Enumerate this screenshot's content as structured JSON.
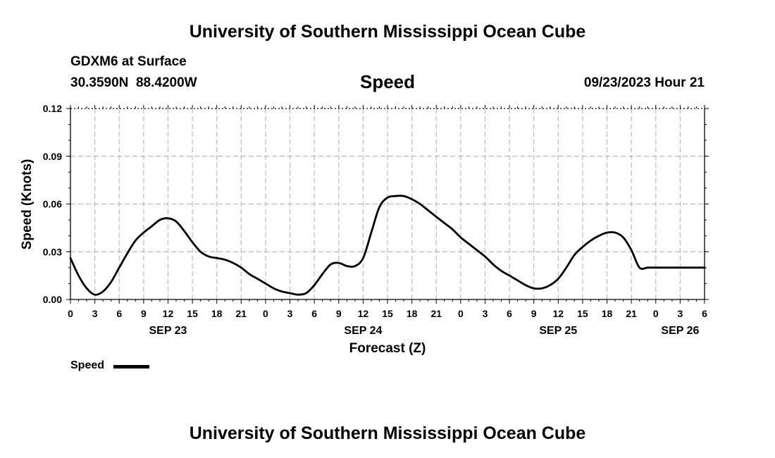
{
  "header": {
    "title": "University of Southern Mississippi Ocean Cube",
    "station": "GDXM6 at Surface",
    "coords": "30.3590N  88.4200W",
    "plot_title": "Speed",
    "datetime": "09/23/2023 Hour 21",
    "footer_title": "University of Southern Mississippi Ocean Cube"
  },
  "legend": {
    "label": "Speed"
  },
  "colors": {
    "line": "#000000",
    "grid": "#bbbbbb",
    "background": "#ffffff"
  },
  "chart_data": {
    "type": "line",
    "title": "Speed",
    "xlabel": "Forecast (Z)",
    "ylabel": "Speed (Knots)",
    "xlim": [
      0,
      78
    ],
    "ylim": [
      0,
      0.12
    ],
    "yticks": [
      "0.00",
      "0.03",
      "0.06",
      "0.09",
      "0.12"
    ],
    "ytick_values": [
      0,
      0.03,
      0.06,
      0.09,
      0.12
    ],
    "xtick_labels": [
      "0",
      "3",
      "6",
      "9",
      "12",
      "15",
      "18",
      "21",
      "0",
      "3",
      "6",
      "9",
      "12",
      "15",
      "18",
      "21",
      "0",
      "3",
      "6",
      "9",
      "12",
      "15",
      "18",
      "21",
      "0",
      "3",
      "6"
    ],
    "date_labels": [
      {
        "label": "SEP 23",
        "x": 12
      },
      {
        "label": "SEP 24",
        "x": 36
      },
      {
        "label": "SEP 25",
        "x": 60
      },
      {
        "label": "SEP 26",
        "x": 75
      }
    ],
    "grid": true,
    "series": [
      {
        "name": "Speed",
        "x": [
          0,
          1,
          2,
          3,
          4,
          5,
          6,
          7,
          8,
          9,
          10,
          11,
          12,
          13,
          14,
          15,
          16,
          17,
          18,
          19,
          20,
          21,
          22,
          23,
          24,
          25,
          26,
          27,
          28,
          29,
          30,
          31,
          32,
          33,
          34,
          35,
          36,
          37,
          38,
          39,
          40,
          41,
          42,
          43,
          44,
          45,
          46,
          47,
          48,
          49,
          50,
          51,
          52,
          53,
          54,
          55,
          56,
          57,
          58,
          59,
          60,
          61,
          62,
          63,
          64,
          65,
          66,
          67,
          68,
          69,
          70,
          71,
          72,
          73,
          74,
          75,
          76,
          77,
          78
        ],
        "values": [
          0.026,
          0.015,
          0.007,
          0.003,
          0.005,
          0.011,
          0.02,
          0.029,
          0.037,
          0.042,
          0.046,
          0.05,
          0.051,
          0.049,
          0.043,
          0.036,
          0.03,
          0.027,
          0.026,
          0.025,
          0.023,
          0.02,
          0.016,
          0.013,
          0.01,
          0.007,
          0.005,
          0.004,
          0.003,
          0.004,
          0.009,
          0.016,
          0.022,
          0.023,
          0.021,
          0.021,
          0.026,
          0.042,
          0.058,
          0.064,
          0.065,
          0.065,
          0.063,
          0.06,
          0.056,
          0.052,
          0.048,
          0.044,
          0.039,
          0.035,
          0.031,
          0.027,
          0.022,
          0.018,
          0.015,
          0.012,
          0.009,
          0.007,
          0.007,
          0.009,
          0.013,
          0.02,
          0.028,
          0.033,
          0.037,
          0.04,
          0.042,
          0.042,
          0.039,
          0.031,
          0.02,
          0.02,
          0.02,
          0.02,
          0.02,
          0.02,
          0.02,
          0.02,
          0.02
        ]
      }
    ]
  }
}
